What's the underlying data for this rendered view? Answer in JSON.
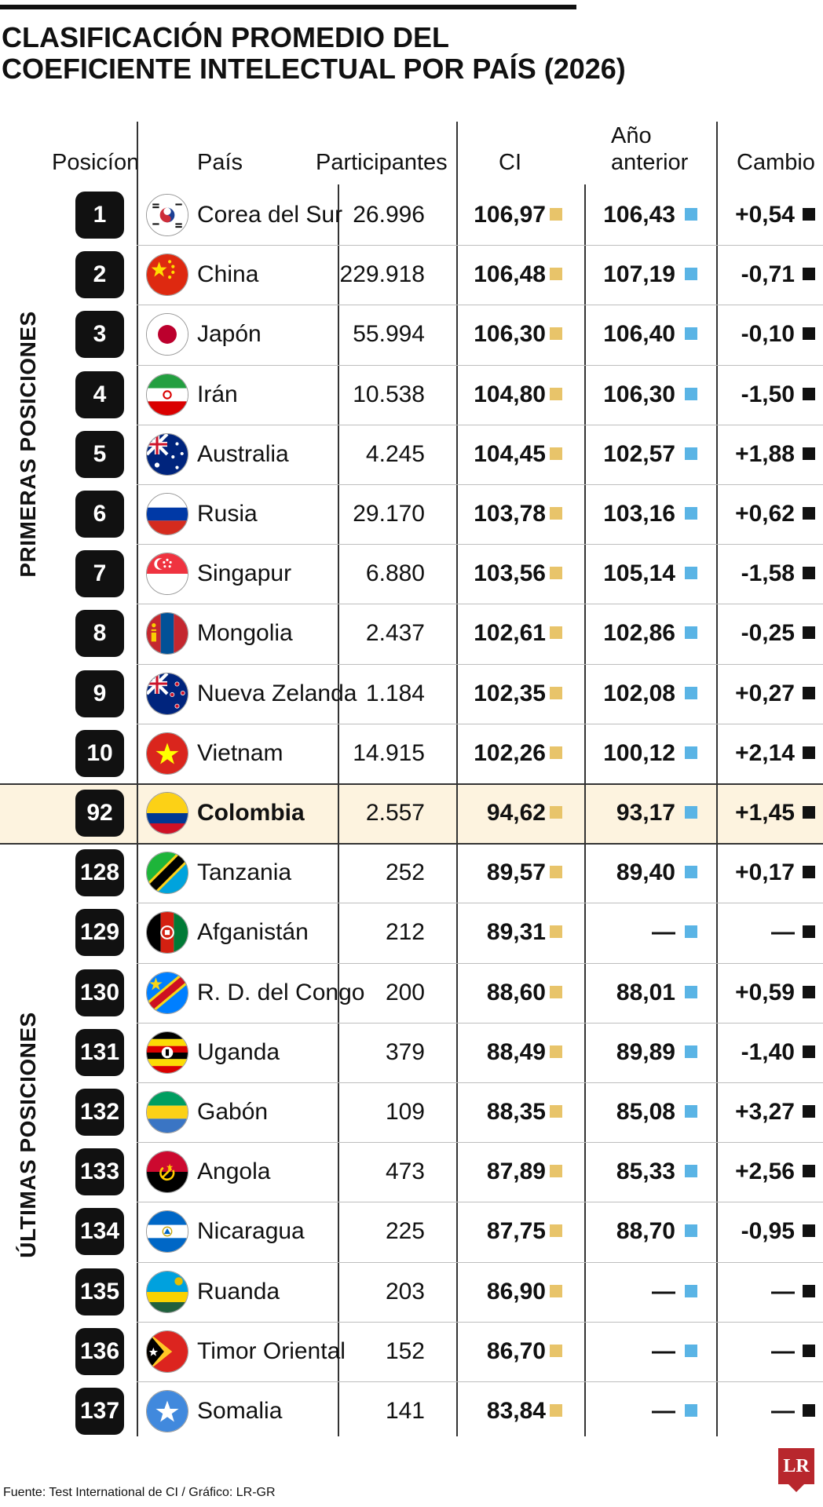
{
  "title_lines": [
    "CLASIFICACIÓN PROMEDIO DEL",
    "COEFICIENTE INTELECTUAL POR PAÍS (2026)"
  ],
  "headers": {
    "position": "Posicíon",
    "country": "País",
    "participants": "Participantes",
    "ci": "CI",
    "previous_line1": "Año",
    "previous_line2": "anterior",
    "change": "Cambio"
  },
  "groups": {
    "top": "PRIMERAS POSICIONES",
    "bottom": "ÚLTIMAS POSICIONES"
  },
  "colors": {
    "ci_marker": "#e8c46a",
    "previous_marker": "#5ab4e5",
    "change_marker": "#111111",
    "highlight": "#fdf3df",
    "logo": "#b8272d"
  },
  "chart_data": {
    "type": "table",
    "columns": [
      "Posicíon",
      "País",
      "Participantes",
      "CI",
      "Año anterior",
      "Cambio"
    ],
    "rows": [
      {
        "rank": "1",
        "country": "Corea del Sur",
        "flag": "south-korea-flag",
        "participants": "26.996",
        "ci": "106,97",
        "previous": "106,43",
        "change": "+0,54"
      },
      {
        "rank": "2",
        "country": "China",
        "flag": "china-flag",
        "participants": "229.918",
        "ci": "106,48",
        "previous": "107,19",
        "change": "-0,71"
      },
      {
        "rank": "3",
        "country": "Japón",
        "flag": "japan-flag",
        "participants": "55.994",
        "ci": "106,30",
        "previous": "106,40",
        "change": "-0,10"
      },
      {
        "rank": "4",
        "country": "Irán",
        "flag": "iran-flag",
        "participants": "10.538",
        "ci": "104,80",
        "previous": "106,30",
        "change": "-1,50"
      },
      {
        "rank": "5",
        "country": "Australia",
        "flag": "australia-flag",
        "participants": "4.245",
        "ci": "104,45",
        "previous": "102,57",
        "change": "+1,88"
      },
      {
        "rank": "6",
        "country": "Rusia",
        "flag": "russia-flag",
        "participants": "29.170",
        "ci": "103,78",
        "previous": "103,16",
        "change": "+0,62"
      },
      {
        "rank": "7",
        "country": "Singapur",
        "flag": "singapore-flag",
        "participants": "6.880",
        "ci": "103,56",
        "previous": "105,14",
        "change": "-1,58"
      },
      {
        "rank": "8",
        "country": "Mongolia",
        "flag": "mongolia-flag",
        "participants": "2.437",
        "ci": "102,61",
        "previous": "102,86",
        "change": "-0,25"
      },
      {
        "rank": "9",
        "country": "Nueva Zelanda",
        "flag": "new-zealand-flag",
        "participants": "1.184",
        "ci": "102,35",
        "previous": "102,08",
        "change": "+0,27"
      },
      {
        "rank": "10",
        "country": "Vietnam",
        "flag": "vietnam-flag",
        "participants": "14.915",
        "ci": "102,26",
        "previous": "100,12",
        "change": "+2,14"
      },
      {
        "rank": "92",
        "country": "Colombia",
        "flag": "colombia-flag",
        "participants": "2.557",
        "ci": "94,62",
        "previous": "93,17",
        "change": "+1,45",
        "highlight": true
      },
      {
        "rank": "128",
        "country": "Tanzania",
        "flag": "tanzania-flag",
        "participants": "252",
        "ci": "89,57",
        "previous": "89,40",
        "change": "+0,17"
      },
      {
        "rank": "129",
        "country": "Afganistán",
        "flag": "afghanistan-flag",
        "participants": "212",
        "ci": "89,31",
        "previous": "—",
        "change": "—"
      },
      {
        "rank": "130",
        "country": "R. D. del Congo",
        "flag": "dr-congo-flag",
        "participants": "200",
        "ci": "88,60",
        "previous": "88,01",
        "change": "+0,59"
      },
      {
        "rank": "131",
        "country": "Uganda",
        "flag": "uganda-flag",
        "participants": "379",
        "ci": "88,49",
        "previous": "89,89",
        "change": "-1,40"
      },
      {
        "rank": "132",
        "country": "Gabón",
        "flag": "gabon-flag",
        "participants": "109",
        "ci": "88,35",
        "previous": "85,08",
        "change": "+3,27"
      },
      {
        "rank": "133",
        "country": "Angola",
        "flag": "angola-flag",
        "participants": "473",
        "ci": "87,89",
        "previous": "85,33",
        "change": "+2,56"
      },
      {
        "rank": "134",
        "country": "Nicaragua",
        "flag": "nicaragua-flag",
        "participants": "225",
        "ci": "87,75",
        "previous": "88,70",
        "change": "-0,95"
      },
      {
        "rank": "135",
        "country": "Ruanda",
        "flag": "rwanda-flag",
        "participants": "203",
        "ci": "86,90",
        "previous": "—",
        "change": "—"
      },
      {
        "rank": "136",
        "country": "Timor Oriental",
        "flag": "east-timor-flag",
        "participants": "152",
        "ci": "86,70",
        "previous": "—",
        "change": "—"
      },
      {
        "rank": "137",
        "country": "Somalia",
        "flag": "somalia-flag",
        "participants": "141",
        "ci": "83,84",
        "previous": "—",
        "change": "—"
      }
    ]
  },
  "source": "Fuente: Test International de CI / Gráfico: LR-GR",
  "logo": "LR"
}
